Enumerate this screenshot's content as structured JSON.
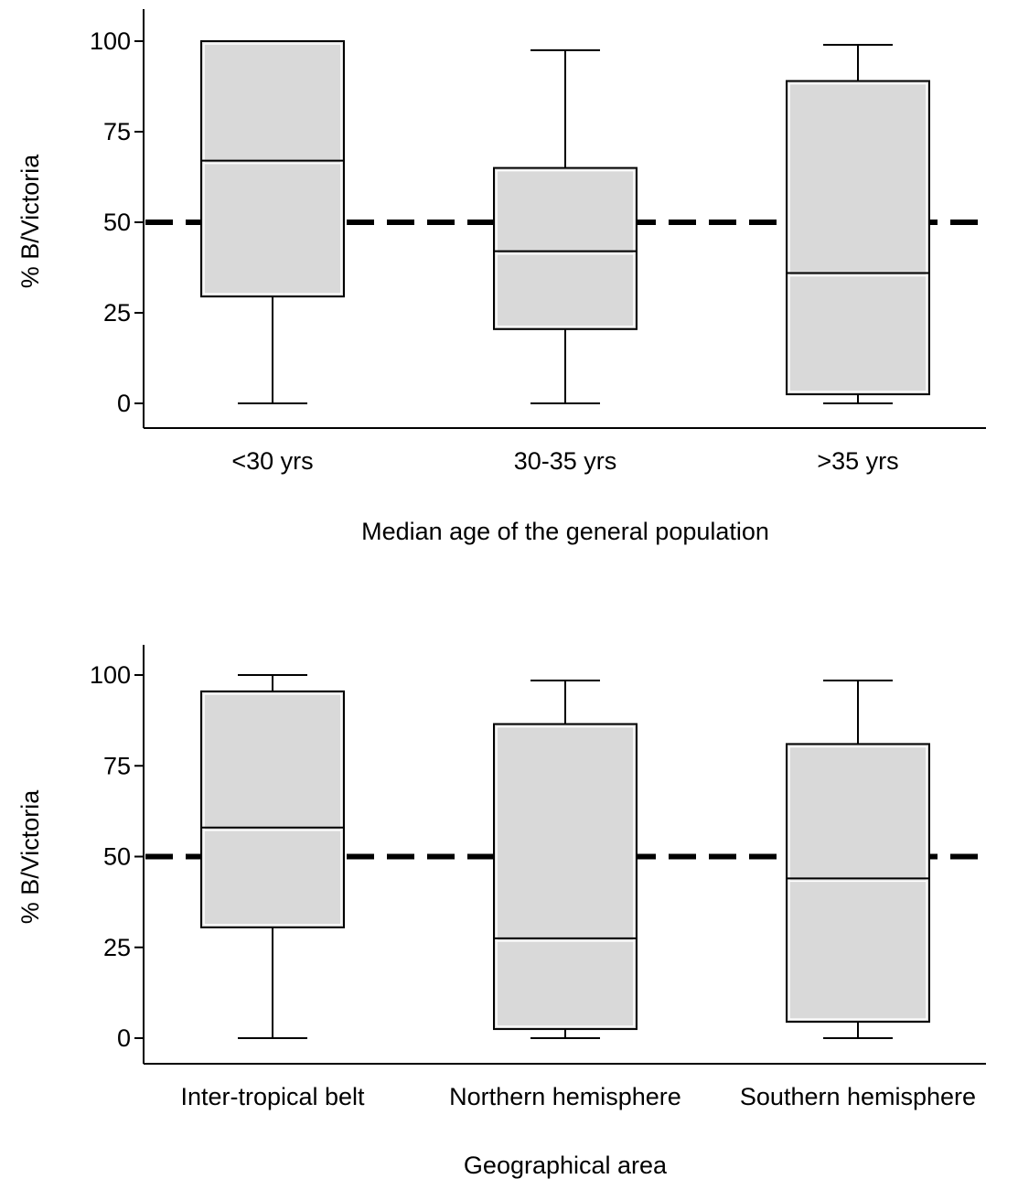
{
  "chart_data": [
    {
      "type": "box",
      "xlabel": "Median age of the general population",
      "ylabel": "% B/Victoria",
      "ylim": [
        -8,
        108
      ],
      "yticks": [
        0,
        25,
        50,
        75,
        100
      ],
      "reference_line": {
        "y": 50,
        "style": "dashed"
      },
      "grid": false,
      "box_fill": "#d9d9d9",
      "categories": [
        "<30 yrs",
        "30-35 yrs",
        ">35 yrs"
      ],
      "boxes": [
        {
          "min": 0,
          "q1": 29.5,
          "median": 67,
          "q3": 100,
          "max": 100
        },
        {
          "min": 0,
          "q1": 20.5,
          "median": 42,
          "q3": 65,
          "max": 97.5
        },
        {
          "min": 0,
          "q1": 2.5,
          "median": 36,
          "q3": 89,
          "max": 99
        }
      ]
    },
    {
      "type": "box",
      "xlabel": "Geographical area",
      "ylabel": "% B/Victoria",
      "ylim": [
        -8,
        108
      ],
      "yticks": [
        0,
        25,
        50,
        75,
        100
      ],
      "reference_line": {
        "y": 50,
        "style": "dashed"
      },
      "grid": false,
      "box_fill": "#d9d9d9",
      "categories": [
        "Inter-tropical belt",
        "Northern hemisphere",
        "Southern hemisphere"
      ],
      "boxes": [
        {
          "min": 0,
          "q1": 30.5,
          "median": 58,
          "q3": 95.5,
          "max": 100
        },
        {
          "min": 0,
          "q1": 2.5,
          "median": 27.5,
          "q3": 86.5,
          "max": 98.5
        },
        {
          "min": 0,
          "q1": 4.5,
          "median": 44,
          "q3": 81,
          "max": 98.5
        }
      ]
    }
  ]
}
